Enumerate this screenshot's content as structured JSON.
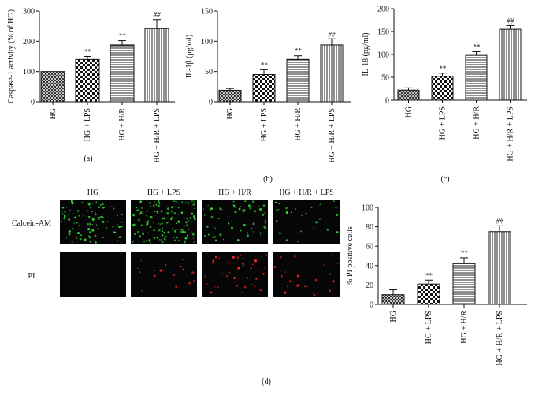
{
  "panel_labels": {
    "a": "(a)",
    "b": "(b)",
    "c": "(c)",
    "d": "(d)"
  },
  "micrograph": {
    "column_labels": [
      "HG",
      "HG + LPS",
      "HG + H/R",
      "HG + H/R + LPS"
    ],
    "row_labels": [
      "Calcein-AM",
      "PI"
    ],
    "colors": {
      "calcein": "#39e239",
      "pi": "#ff2a2a",
      "background": "#060606"
    }
  },
  "chart_data": [
    {
      "id": "a",
      "type": "bar",
      "categories": [
        "HG",
        "HG + LPS",
        "HG + H/R",
        "HG + H/R + LPS"
      ],
      "values": [
        100,
        140,
        188,
        242
      ],
      "errors": [
        0,
        10,
        14,
        30
      ],
      "annotations": [
        "",
        "**",
        "**",
        "##"
      ],
      "title": "",
      "xlabel": "",
      "ylabel": "Caspase-1 activity (% of HG)",
      "ylim": [
        0,
        300
      ],
      "yticks": [
        0,
        100,
        200,
        300
      ],
      "patterns": [
        "crosshatch",
        "checker",
        "horizontal",
        "vertical"
      ],
      "grid": false
    },
    {
      "id": "b",
      "type": "bar",
      "categories": [
        "HG",
        "HG + LPS",
        "HG + H/R",
        "HG + H/R + LPS"
      ],
      "values": [
        19,
        45,
        70,
        94
      ],
      "errors": [
        3,
        8,
        6,
        10
      ],
      "annotations": [
        "",
        "**",
        "**",
        "##"
      ],
      "title": "",
      "xlabel": "",
      "ylabel": "IL-1β (pg/ml)",
      "ylim": [
        0,
        150
      ],
      "yticks": [
        0,
        50,
        100,
        150
      ],
      "patterns": [
        "crosshatch",
        "checker",
        "horizontal",
        "vertical"
      ],
      "grid": false
    },
    {
      "id": "c",
      "type": "bar",
      "categories": [
        "HG",
        "HG + LPS",
        "HG + H/R",
        "HG + H/R + LPS"
      ],
      "values": [
        22,
        52,
        98,
        155
      ],
      "errors": [
        5,
        7,
        8,
        8
      ],
      "annotations": [
        "",
        "**",
        "**",
        "##"
      ],
      "title": "",
      "xlabel": "",
      "ylabel": "IL-18 (pg/ml)",
      "ylim": [
        0,
        200
      ],
      "yticks": [
        0,
        50,
        100,
        150,
        200
      ],
      "patterns": [
        "crosshatch",
        "checker",
        "horizontal",
        "vertical"
      ],
      "grid": false
    },
    {
      "id": "d",
      "type": "bar",
      "categories": [
        "HG",
        "HG + LPS",
        "HG + H/R",
        "HG + H/R + LPS"
      ],
      "values": [
        10,
        21,
        42,
        75
      ],
      "errors": [
        5,
        4,
        6,
        6
      ],
      "annotations": [
        "",
        "**",
        "**",
        "##"
      ],
      "title": "",
      "xlabel": "",
      "ylabel": "% PI positive cells",
      "ylim": [
        0,
        100
      ],
      "yticks": [
        0,
        20,
        40,
        60,
        80,
        100
      ],
      "patterns": [
        "crosshatch",
        "checker",
        "horizontal",
        "vertical"
      ],
      "grid": false
    }
  ]
}
